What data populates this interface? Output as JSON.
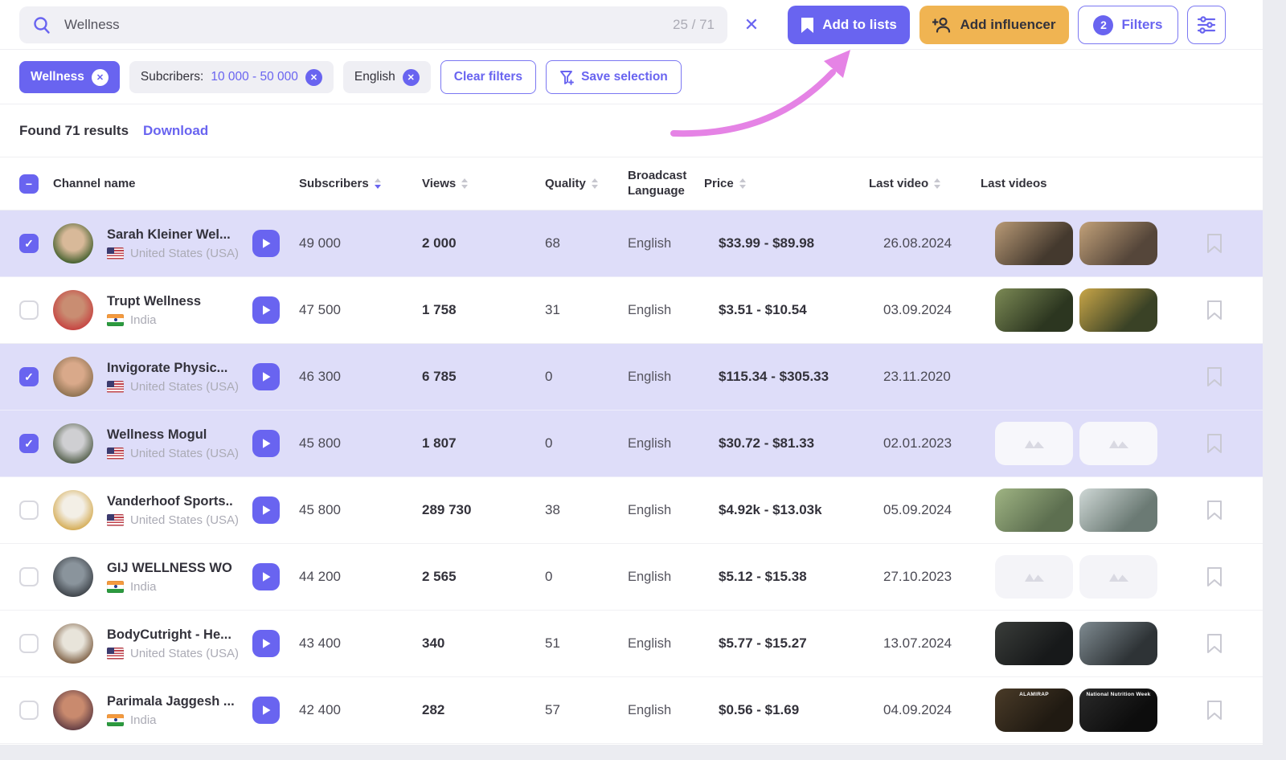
{
  "colors": {
    "accent_purple": "#6964F0",
    "accent_orange": "#F0B452",
    "selected_row": "#DEDDF9",
    "annotation_pink": "#E583E5",
    "chip_gray": "#EFEFF4",
    "text_dark": "#33323B",
    "text_gray": "#ABABB5"
  },
  "topbar": {
    "search": {
      "value": "Wellness",
      "counter": "25 / 71"
    },
    "add_to_lists_label": "Add to lists",
    "add_influencer_label": "Add influencer",
    "filters_label": "Filters",
    "filters_count": "2"
  },
  "filters": {
    "chips": [
      {
        "label": "Wellness"
      },
      {
        "prefix": "Subcribers:",
        "value": "10 000 - 50 000"
      },
      {
        "label": "English"
      }
    ],
    "clear_label": "Clear filters",
    "save_label": "Save selection"
  },
  "results": {
    "found": "Found 71 results",
    "download_label": "Download"
  },
  "table": {
    "columns": [
      {
        "label": "Channel name",
        "sortable": false
      },
      {
        "label": "Subscribers",
        "sortable": true,
        "sort": "desc"
      },
      {
        "label": "Views",
        "sortable": true
      },
      {
        "label": "Quality",
        "sortable": true
      },
      {
        "label": "Broadcast Language",
        "sortable": false
      },
      {
        "label": "Price",
        "sortable": true
      },
      {
        "label": "Last video",
        "sortable": true
      },
      {
        "label": "Last videos",
        "sortable": false
      }
    ],
    "rows": [
      {
        "name": "Sarah Kleiner Wel...",
        "country": "United States (USA)",
        "flag": "us",
        "subscribers": "49 000",
        "views": "2 000",
        "quality": "68",
        "language": "English",
        "price": "$33.99 - $89.98",
        "last_video": "26.08.2024",
        "checked": true,
        "avatar": {
          "c1": "#D8B999",
          "c2": "#3C5B28"
        },
        "thumbs": {
          "type": "photos",
          "items": [
            {
              "c1": "#B99A76",
              "c2": "#44392E",
              "label": ""
            },
            {
              "c1": "#C2A179",
              "c2": "#55463A",
              "label": ""
            }
          ]
        }
      },
      {
        "name": "Trupt Wellness",
        "country": "India",
        "flag": "in",
        "subscribers": "47 500",
        "views": "1 758",
        "quality": "31",
        "language": "English",
        "price": "$3.51 - $10.54",
        "last_video": "03.09.2024",
        "checked": false,
        "avatar": {
          "c1": "#C98D72",
          "c2": "#C63F3E"
        },
        "thumbs": {
          "type": "photos",
          "items": [
            {
              "c1": "#7C8A55",
              "c2": "#2C3620",
              "label": ""
            },
            {
              "c1": "#C9A648",
              "c2": "#3A4226",
              "label": ""
            }
          ]
        }
      },
      {
        "name": "Invigorate Physic...",
        "country": "United States (USA)",
        "flag": "us",
        "subscribers": "46 300",
        "views": "6 785",
        "quality": "0",
        "language": "English",
        "price": "$115.34 - $305.33",
        "last_video": "23.11.2020",
        "checked": true,
        "avatar": {
          "c1": "#D9A98A",
          "c2": "#8A6F4E"
        },
        "thumbs": {
          "type": "none",
          "items": []
        }
      },
      {
        "name": "Wellness Mogul",
        "country": "United States (USA)",
        "flag": "us",
        "subscribers": "45 800",
        "views": "1 807",
        "quality": "0",
        "language": "English",
        "price": "$30.72 - $81.33",
        "last_video": "02.01.2023",
        "checked": true,
        "avatar": {
          "c1": "#CFCFD2",
          "c2": "#4E5A45"
        },
        "thumbs": {
          "type": "placeholders",
          "items": []
        }
      },
      {
        "name": "Vanderhoof Sports..",
        "country": "United States (USA)",
        "flag": "us",
        "subscribers": "45 800",
        "views": "289 730",
        "quality": "38",
        "language": "English",
        "price": "$4.92k - $13.03k",
        "last_video": "05.09.2024",
        "checked": false,
        "avatar": {
          "c1": "#F3EFE6",
          "c2": "#D3A84C"
        },
        "thumbs": {
          "type": "photos",
          "items": [
            {
              "c1": "#9FB483",
              "c2": "#5D6F50",
              "label": ""
            },
            {
              "c1": "#CFD8D6",
              "c2": "#6B7A74",
              "label": ""
            }
          ]
        }
      },
      {
        "name": "GIJ WELLNESS WO",
        "country": "India",
        "flag": "in",
        "subscribers": "44 200",
        "views": "2 565",
        "quality": "0",
        "language": "English",
        "price": "$5.12 - $15.38",
        "last_video": "27.10.2023",
        "checked": false,
        "avatar": {
          "c1": "#8A949C",
          "c2": "#3A3F45"
        },
        "thumbs": {
          "type": "placeholders",
          "items": []
        }
      },
      {
        "name": "BodyCutright - He...",
        "country": "United States (USA)",
        "flag": "us",
        "subscribers": "43 400",
        "views": "340",
        "quality": "51",
        "language": "English",
        "price": "$5.77 - $15.27",
        "last_video": "13.07.2024",
        "checked": false,
        "avatar": {
          "c1": "#E8E4DA",
          "c2": "#7A5B3F"
        },
        "thumbs": {
          "type": "photos",
          "items": [
            {
              "c1": "#3A3D3A",
              "c2": "#17191A",
              "label": ""
            },
            {
              "c1": "#7F8B91",
              "c2": "#2E3336",
              "label": ""
            }
          ]
        }
      },
      {
        "name": "Parimala Jaggesh ...",
        "country": "India",
        "flag": "in",
        "subscribers": "42 400",
        "views": "282",
        "quality": "57",
        "language": "English",
        "price": "$0.56 - $1.69",
        "last_video": "04.09.2024",
        "checked": false,
        "avatar": {
          "c1": "#C98A6E",
          "c2": "#5E3A42"
        },
        "thumbs": {
          "type": "photos",
          "items": [
            {
              "c1": "#4A3B28",
              "c2": "#201A12",
              "label": "ALAMIRAP"
            },
            {
              "c1": "#2A2A2A",
              "c2": "#0D0D0D",
              "label": "National Nutrition Week"
            }
          ]
        }
      }
    ]
  }
}
